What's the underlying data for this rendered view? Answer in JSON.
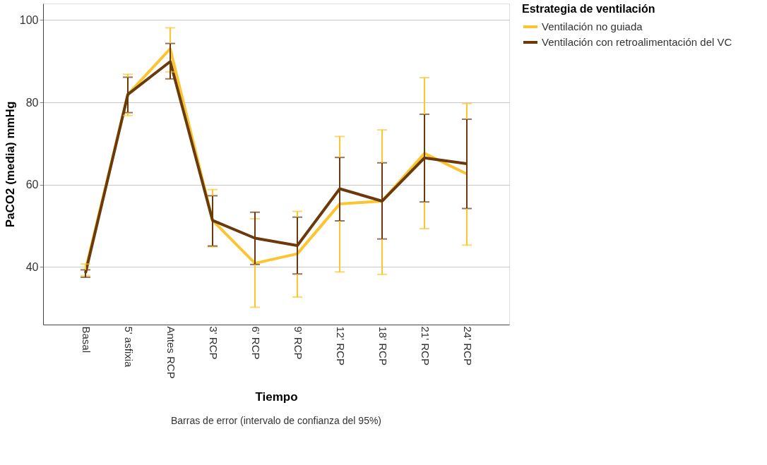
{
  "chart_data": {
    "type": "line",
    "xlabel": "Tiempo",
    "ylabel": "PaCO2 (media) mmHg",
    "legend_title": "Estrategia de ventilación",
    "categories": [
      "Basal",
      "5' asfixia",
      "Antes RCP",
      "3' RCP",
      "6' RCP",
      "9' RCP",
      "12' RCP",
      "18' RCP",
      "21' RCP",
      "24' RCP"
    ],
    "series": [
      {
        "name": "Ventilación no guiada",
        "color": "#fbc531",
        "values": [
          39.2,
          81.9,
          93.0,
          51.3,
          40.9,
          43.2,
          55.3,
          56.0,
          67.6,
          62.6
        ],
        "errors": [
          [
            37.9,
            40.7
          ],
          [
            76.8,
            86.8
          ],
          [
            87.4,
            98.1
          ],
          [
            44.9,
            58.8
          ],
          [
            30.2,
            51.7
          ],
          [
            32.7,
            53.5
          ],
          [
            38.8,
            71.7
          ],
          [
            38.2,
            73.3
          ],
          [
            49.3,
            86.0
          ],
          [
            45.3,
            79.7
          ]
        ]
      },
      {
        "name": "Ventilación con retroalimentación del VC",
        "color": "#6b3a0b",
        "values": [
          38.5,
          81.9,
          89.9,
          51.3,
          47.0,
          45.2,
          59.0,
          56.0,
          66.5,
          65.1
        ],
        "errors": [
          [
            37.5,
            39.3
          ],
          [
            77.5,
            86.1
          ],
          [
            85.7,
            94.3
          ],
          [
            45.1,
            57.3
          ],
          [
            40.6,
            53.3
          ],
          [
            38.3,
            52.1
          ],
          [
            51.2,
            66.6
          ],
          [
            46.8,
            65.3
          ],
          [
            55.8,
            77.1
          ],
          [
            54.2,
            75.9
          ]
        ]
      }
    ],
    "ylim": [
      26,
      104
    ],
    "yticks": [
      40,
      60,
      80,
      100
    ],
    "grid": "y",
    "legend": "top right",
    "marker": "none",
    "line_style": "solid",
    "annotations": [
      "Barras de error (intervalo de confianza del 95%)"
    ]
  }
}
